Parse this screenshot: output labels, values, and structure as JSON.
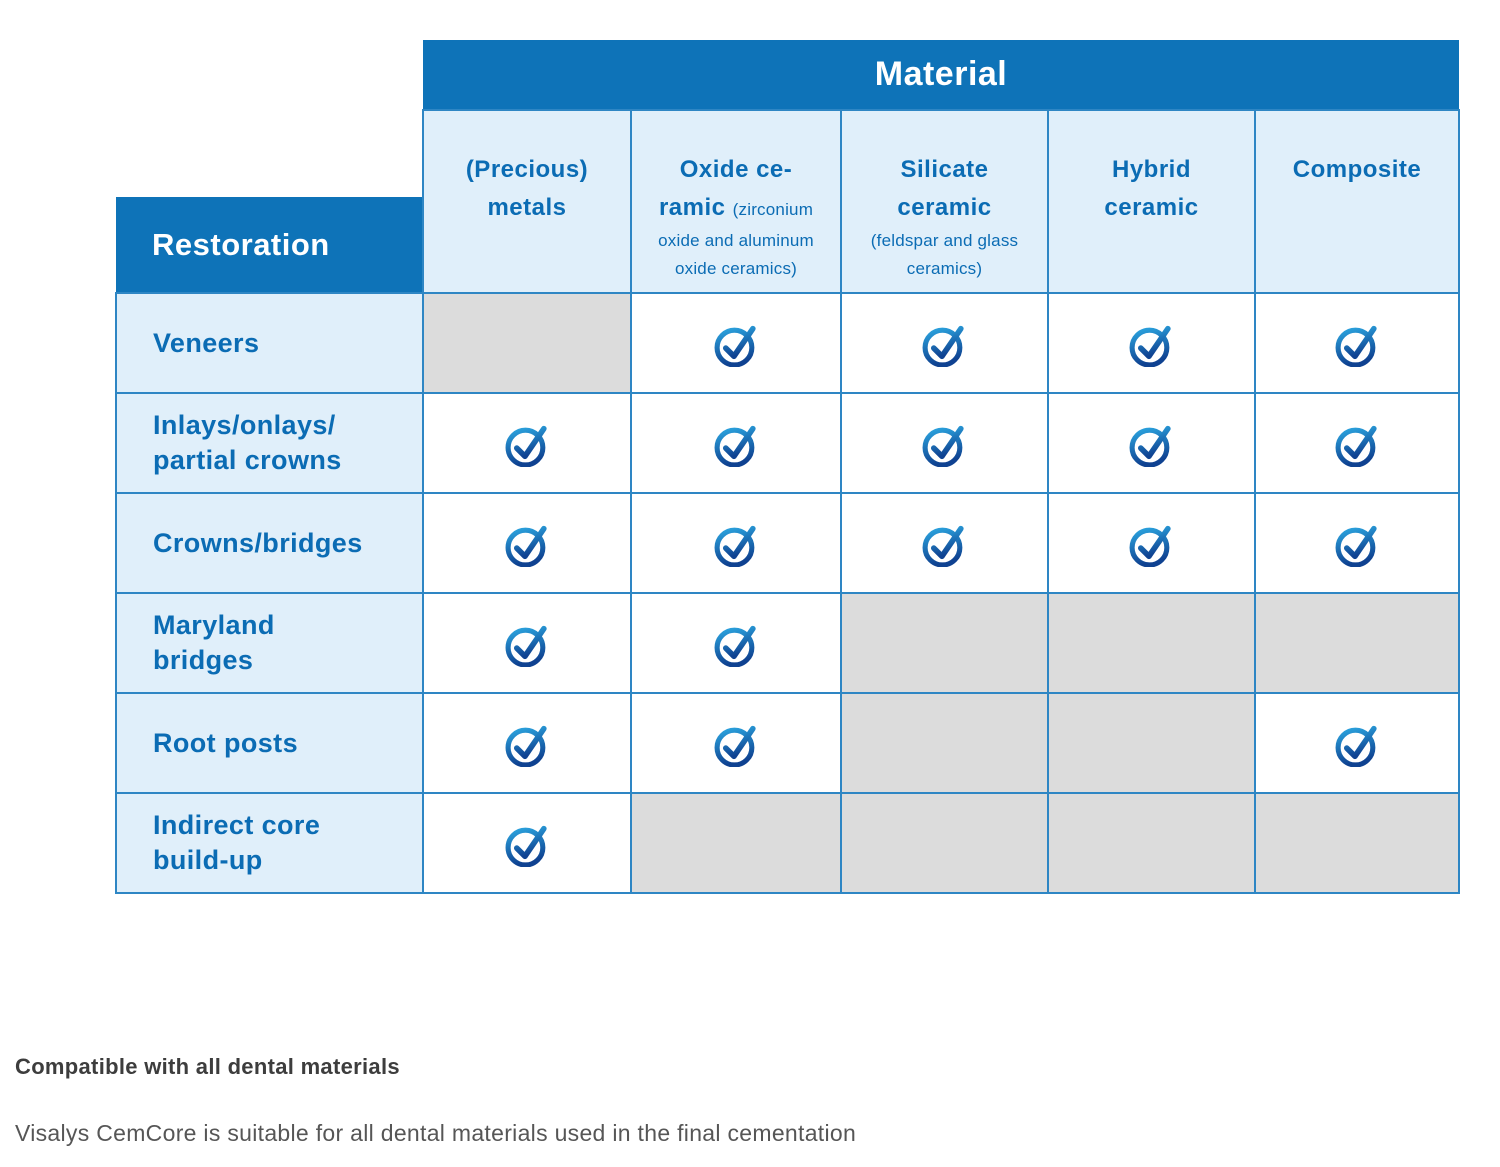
{
  "table": {
    "group_header": "Material",
    "corner_header": "Restoration",
    "materials": [
      {
        "name": "(Precious) metals",
        "lines": [
          [
            {
              "t": "(Precious)",
              "s": "lg"
            }
          ],
          [
            {
              "t": "metals",
              "s": "lg"
            }
          ]
        ]
      },
      {
        "name": "Oxide ceramic (zirconium oxide and aluminum oxide ceramics)",
        "lines": [
          [
            {
              "t": "Oxide ce-",
              "s": "lg"
            }
          ],
          [
            {
              "t": "ramic ",
              "s": "lg"
            },
            {
              "t": "(zirconium",
              "s": "sm"
            }
          ],
          [
            {
              "t": "oxide and aluminum",
              "s": "sm"
            }
          ],
          [
            {
              "t": "oxide ceramics)",
              "s": "sm"
            }
          ]
        ]
      },
      {
        "name": "Silicate ceramic (feldspar and glass ceramics)",
        "lines": [
          [
            {
              "t": "Silicate",
              "s": "lg"
            }
          ],
          [
            {
              "t": "ceramic",
              "s": "lg"
            }
          ],
          [
            {
              "t": "(feldspar and glass",
              "s": "sm"
            }
          ],
          [
            {
              "t": "ceramics)",
              "s": "sm"
            }
          ]
        ]
      },
      {
        "name": "Hybrid ceramic",
        "lines": [
          [
            {
              "t": "Hybrid",
              "s": "lg"
            }
          ],
          [
            {
              "t": "ceramic",
              "s": "lg"
            }
          ]
        ]
      },
      {
        "name": "Composite",
        "lines": [
          [
            {
              "t": "Composite",
              "s": "lg"
            }
          ]
        ]
      }
    ],
    "rows": [
      {
        "label": "Veneers",
        "cells": [
          "na",
          "check",
          "check",
          "check",
          "check"
        ]
      },
      {
        "label": "Inlays/onlays/\npartial crowns",
        "cells": [
          "check",
          "check",
          "check",
          "check",
          "check"
        ]
      },
      {
        "label": "Crowns/bridges",
        "cells": [
          "check",
          "check",
          "check",
          "check",
          "check"
        ]
      },
      {
        "label": "Maryland\nbridges",
        "cells": [
          "check",
          "check",
          "na",
          "na",
          "na"
        ]
      },
      {
        "label": "Root posts",
        "cells": [
          "check",
          "check",
          "na",
          "na",
          "check"
        ]
      },
      {
        "label": "Indirect core\nbuild-up",
        "cells": [
          "check",
          "na",
          "na",
          "na",
          "na"
        ]
      }
    ]
  },
  "captions": {
    "bold": "Compatible with all dental materials",
    "sub": "Visalys CemCore is suitable for all dental materials used in the final cementation"
  },
  "icons": {
    "check": "check-circle-icon"
  },
  "colors": {
    "header_blue": "#0e73b8",
    "cell_light_blue": "#e0effa",
    "border_blue": "#2e86c4",
    "na_gray": "#dcdcdc",
    "text_blue": "#0b6cb4",
    "check_gradient_top": "#2ba3de",
    "check_gradient_bottom": "#0f4291",
    "caption_dark": "#3d3d3d",
    "caption_gray": "#565656"
  }
}
